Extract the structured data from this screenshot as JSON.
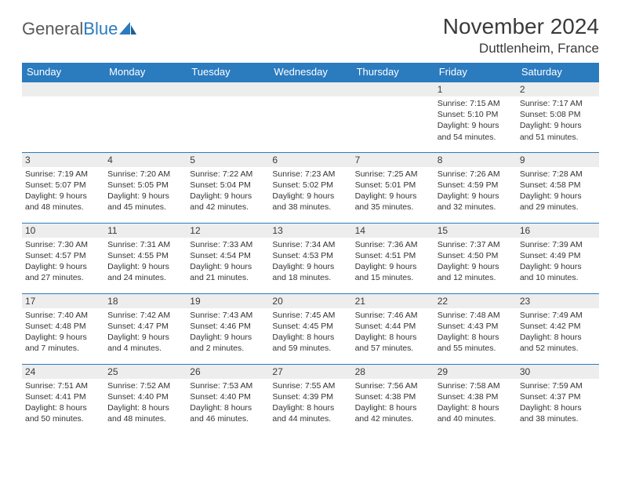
{
  "branding": {
    "word1": "General",
    "word2": "Blue"
  },
  "title": "November 2024",
  "location": "Duttlenheim, France",
  "colors": {
    "header_bg": "#2b7bbf",
    "header_text": "#ffffff",
    "daynum_bg": "#ededed",
    "border": "#2b7bbf",
    "text": "#333333"
  },
  "weekdays": [
    "Sunday",
    "Monday",
    "Tuesday",
    "Wednesday",
    "Thursday",
    "Friday",
    "Saturday"
  ],
  "weeks": [
    [
      {
        "blank": true
      },
      {
        "blank": true
      },
      {
        "blank": true
      },
      {
        "blank": true
      },
      {
        "blank": true
      },
      {
        "day": "1",
        "sunrise": "Sunrise: 7:15 AM",
        "sunset": "Sunset: 5:10 PM",
        "daylight1": "Daylight: 9 hours",
        "daylight2": "and 54 minutes."
      },
      {
        "day": "2",
        "sunrise": "Sunrise: 7:17 AM",
        "sunset": "Sunset: 5:08 PM",
        "daylight1": "Daylight: 9 hours",
        "daylight2": "and 51 minutes."
      }
    ],
    [
      {
        "day": "3",
        "sunrise": "Sunrise: 7:19 AM",
        "sunset": "Sunset: 5:07 PM",
        "daylight1": "Daylight: 9 hours",
        "daylight2": "and 48 minutes."
      },
      {
        "day": "4",
        "sunrise": "Sunrise: 7:20 AM",
        "sunset": "Sunset: 5:05 PM",
        "daylight1": "Daylight: 9 hours",
        "daylight2": "and 45 minutes."
      },
      {
        "day": "5",
        "sunrise": "Sunrise: 7:22 AM",
        "sunset": "Sunset: 5:04 PM",
        "daylight1": "Daylight: 9 hours",
        "daylight2": "and 42 minutes."
      },
      {
        "day": "6",
        "sunrise": "Sunrise: 7:23 AM",
        "sunset": "Sunset: 5:02 PM",
        "daylight1": "Daylight: 9 hours",
        "daylight2": "and 38 minutes."
      },
      {
        "day": "7",
        "sunrise": "Sunrise: 7:25 AM",
        "sunset": "Sunset: 5:01 PM",
        "daylight1": "Daylight: 9 hours",
        "daylight2": "and 35 minutes."
      },
      {
        "day": "8",
        "sunrise": "Sunrise: 7:26 AM",
        "sunset": "Sunset: 4:59 PM",
        "daylight1": "Daylight: 9 hours",
        "daylight2": "and 32 minutes."
      },
      {
        "day": "9",
        "sunrise": "Sunrise: 7:28 AM",
        "sunset": "Sunset: 4:58 PM",
        "daylight1": "Daylight: 9 hours",
        "daylight2": "and 29 minutes."
      }
    ],
    [
      {
        "day": "10",
        "sunrise": "Sunrise: 7:30 AM",
        "sunset": "Sunset: 4:57 PM",
        "daylight1": "Daylight: 9 hours",
        "daylight2": "and 27 minutes."
      },
      {
        "day": "11",
        "sunrise": "Sunrise: 7:31 AM",
        "sunset": "Sunset: 4:55 PM",
        "daylight1": "Daylight: 9 hours",
        "daylight2": "and 24 minutes."
      },
      {
        "day": "12",
        "sunrise": "Sunrise: 7:33 AM",
        "sunset": "Sunset: 4:54 PM",
        "daylight1": "Daylight: 9 hours",
        "daylight2": "and 21 minutes."
      },
      {
        "day": "13",
        "sunrise": "Sunrise: 7:34 AM",
        "sunset": "Sunset: 4:53 PM",
        "daylight1": "Daylight: 9 hours",
        "daylight2": "and 18 minutes."
      },
      {
        "day": "14",
        "sunrise": "Sunrise: 7:36 AM",
        "sunset": "Sunset: 4:51 PM",
        "daylight1": "Daylight: 9 hours",
        "daylight2": "and 15 minutes."
      },
      {
        "day": "15",
        "sunrise": "Sunrise: 7:37 AM",
        "sunset": "Sunset: 4:50 PM",
        "daylight1": "Daylight: 9 hours",
        "daylight2": "and 12 minutes."
      },
      {
        "day": "16",
        "sunrise": "Sunrise: 7:39 AM",
        "sunset": "Sunset: 4:49 PM",
        "daylight1": "Daylight: 9 hours",
        "daylight2": "and 10 minutes."
      }
    ],
    [
      {
        "day": "17",
        "sunrise": "Sunrise: 7:40 AM",
        "sunset": "Sunset: 4:48 PM",
        "daylight1": "Daylight: 9 hours",
        "daylight2": "and 7 minutes."
      },
      {
        "day": "18",
        "sunrise": "Sunrise: 7:42 AM",
        "sunset": "Sunset: 4:47 PM",
        "daylight1": "Daylight: 9 hours",
        "daylight2": "and 4 minutes."
      },
      {
        "day": "19",
        "sunrise": "Sunrise: 7:43 AM",
        "sunset": "Sunset: 4:46 PM",
        "daylight1": "Daylight: 9 hours",
        "daylight2": "and 2 minutes."
      },
      {
        "day": "20",
        "sunrise": "Sunrise: 7:45 AM",
        "sunset": "Sunset: 4:45 PM",
        "daylight1": "Daylight: 8 hours",
        "daylight2": "and 59 minutes."
      },
      {
        "day": "21",
        "sunrise": "Sunrise: 7:46 AM",
        "sunset": "Sunset: 4:44 PM",
        "daylight1": "Daylight: 8 hours",
        "daylight2": "and 57 minutes."
      },
      {
        "day": "22",
        "sunrise": "Sunrise: 7:48 AM",
        "sunset": "Sunset: 4:43 PM",
        "daylight1": "Daylight: 8 hours",
        "daylight2": "and 55 minutes."
      },
      {
        "day": "23",
        "sunrise": "Sunrise: 7:49 AM",
        "sunset": "Sunset: 4:42 PM",
        "daylight1": "Daylight: 8 hours",
        "daylight2": "and 52 minutes."
      }
    ],
    [
      {
        "day": "24",
        "sunrise": "Sunrise: 7:51 AM",
        "sunset": "Sunset: 4:41 PM",
        "daylight1": "Daylight: 8 hours",
        "daylight2": "and 50 minutes."
      },
      {
        "day": "25",
        "sunrise": "Sunrise: 7:52 AM",
        "sunset": "Sunset: 4:40 PM",
        "daylight1": "Daylight: 8 hours",
        "daylight2": "and 48 minutes."
      },
      {
        "day": "26",
        "sunrise": "Sunrise: 7:53 AM",
        "sunset": "Sunset: 4:40 PM",
        "daylight1": "Daylight: 8 hours",
        "daylight2": "and 46 minutes."
      },
      {
        "day": "27",
        "sunrise": "Sunrise: 7:55 AM",
        "sunset": "Sunset: 4:39 PM",
        "daylight1": "Daylight: 8 hours",
        "daylight2": "and 44 minutes."
      },
      {
        "day": "28",
        "sunrise": "Sunrise: 7:56 AM",
        "sunset": "Sunset: 4:38 PM",
        "daylight1": "Daylight: 8 hours",
        "daylight2": "and 42 minutes."
      },
      {
        "day": "29",
        "sunrise": "Sunrise: 7:58 AM",
        "sunset": "Sunset: 4:38 PM",
        "daylight1": "Daylight: 8 hours",
        "daylight2": "and 40 minutes."
      },
      {
        "day": "30",
        "sunrise": "Sunrise: 7:59 AM",
        "sunset": "Sunset: 4:37 PM",
        "daylight1": "Daylight: 8 hours",
        "daylight2": "and 38 minutes."
      }
    ]
  ]
}
